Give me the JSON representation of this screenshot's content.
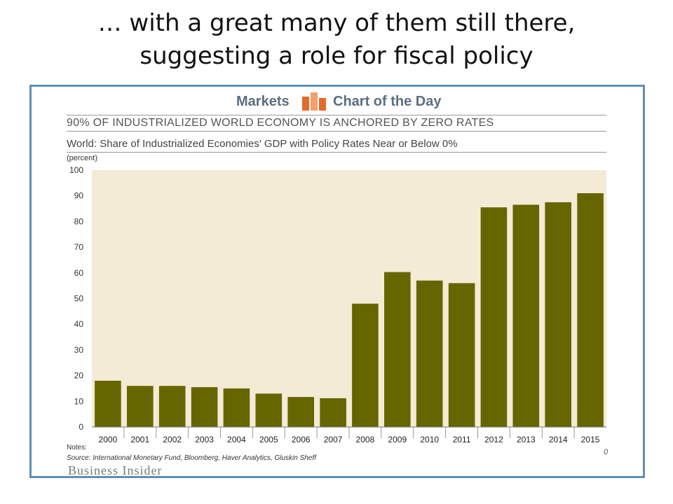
{
  "slide": {
    "title_line1": "… with a great many of them still there,",
    "title_line2": "suggesting a role for fiscal policy"
  },
  "header": {
    "brand_left": "Markets",
    "brand_right": "Chart of the Day",
    "logo_colors": [
      "#e56a2b",
      "#f4a06d"
    ]
  },
  "chart_data": {
    "type": "bar",
    "title": "90% OF INDUSTRIALIZED WORLD ECONOMY IS ANCHORED BY ZERO RATES",
    "subtitle": "World: Share of Industrialized Economies' GDP with Policy Rates Near or Below 0%",
    "ylabel": "(percent)",
    "xlabel": "",
    "categories": [
      "2000",
      "2001",
      "2002",
      "2003",
      "2004",
      "2005",
      "2006",
      "2007",
      "2008",
      "2009",
      "2010",
      "2011",
      "2012",
      "2013",
      "2014",
      "2015"
    ],
    "values": [
      18,
      16,
      16,
      15.5,
      15,
      13,
      11.7,
      11.2,
      48,
      60.3,
      57,
      56,
      85.5,
      86.5,
      87.5,
      91
    ],
    "ylim": [
      0,
      100
    ],
    "yticks": [
      "0",
      "10",
      "20",
      "30",
      "40",
      "50",
      "60",
      "70",
      "80",
      "90",
      "100"
    ],
    "grid": false,
    "bar_color": "#666600",
    "background_color": "#f3ebd6"
  },
  "footer": {
    "notes": "Notes:",
    "source": "Source: International Monetary Fund, Bloomberg, Haver Analytics, Gluskin Sheff",
    "brand": "Business Insider",
    "corner_mark": "0"
  }
}
